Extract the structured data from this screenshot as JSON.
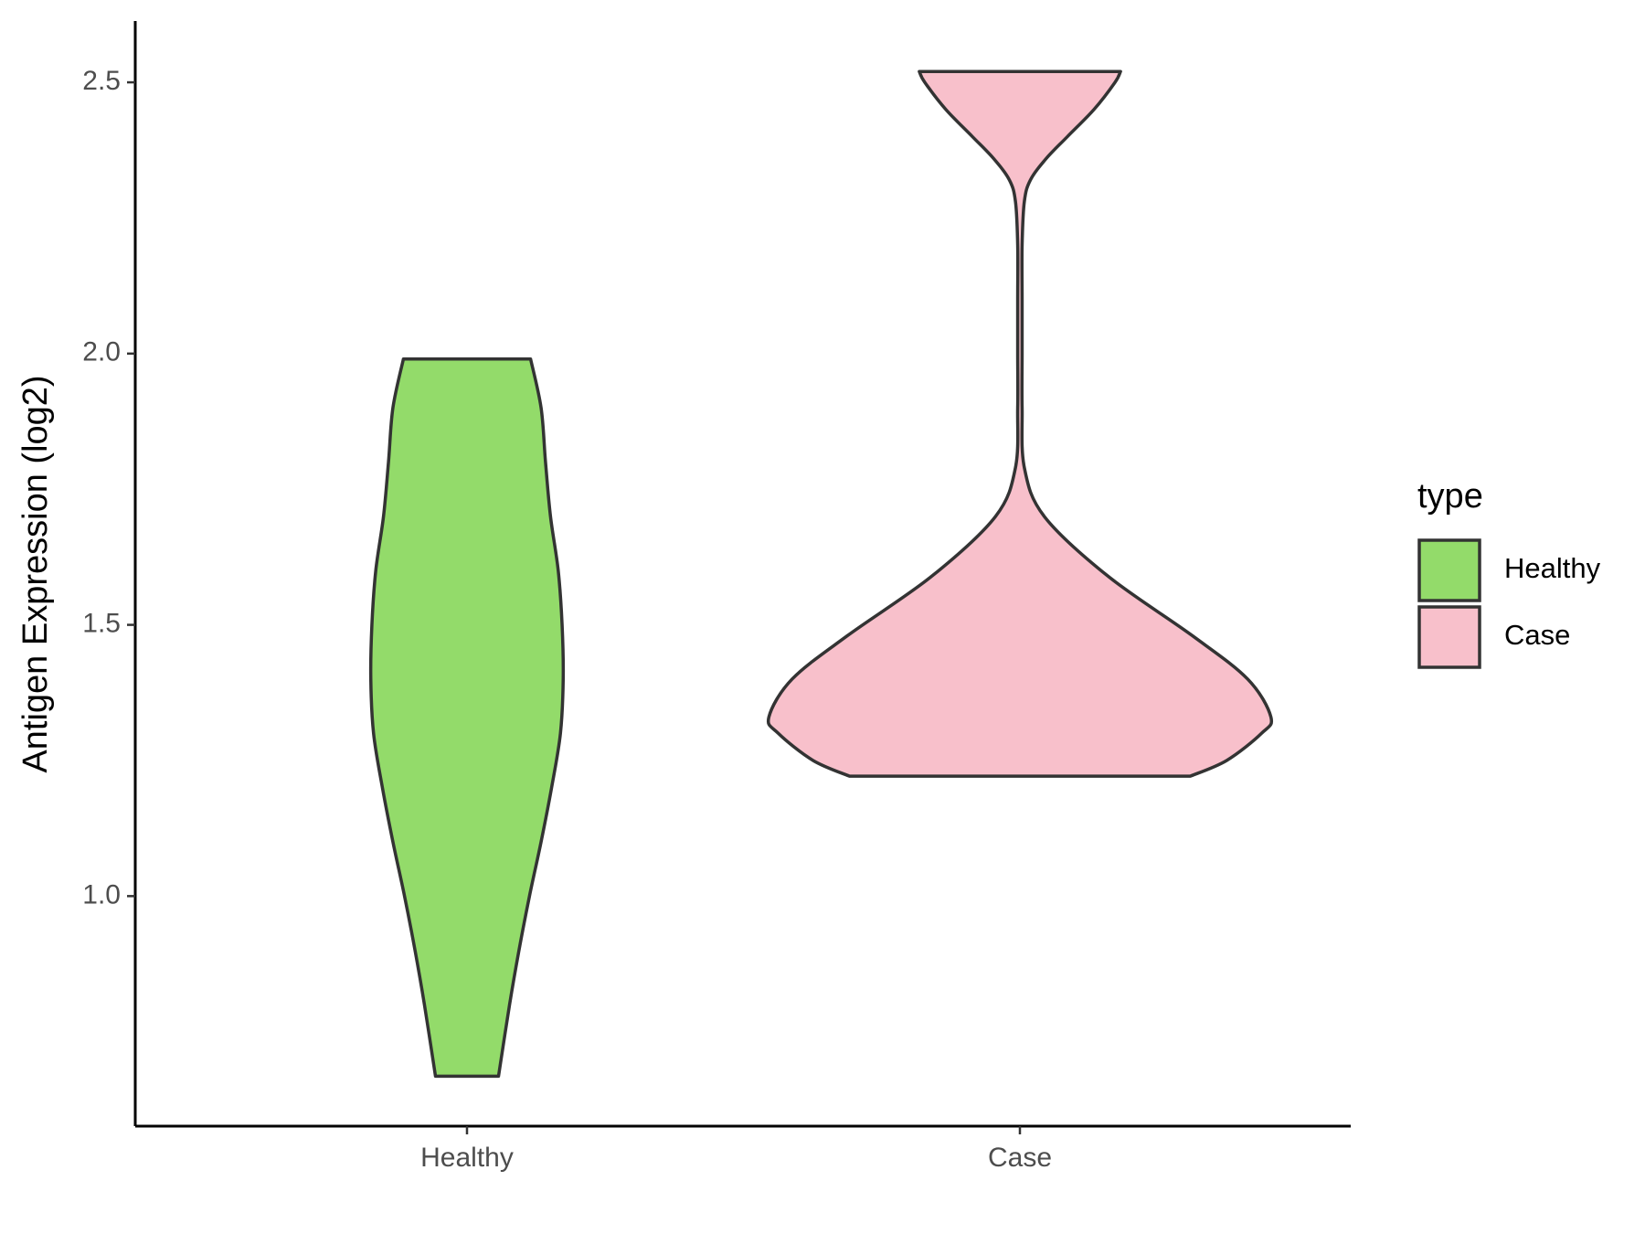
{
  "chart_data": {
    "type": "violin",
    "y_label": "Antigen Expression (log2)",
    "categories": [
      "Healthy",
      "Case"
    ],
    "legend_title": "type",
    "legend_position": "right",
    "ylim": [
      0.576,
      2.613
    ],
    "yticks": [
      {
        "value": 1,
        "label": "1.0"
      },
      {
        "value": 1.5,
        "label": "1.5"
      },
      {
        "value": 2,
        "label": "2.0"
      },
      {
        "value": 2.5,
        "label": "2.5"
      }
    ],
    "grid": false,
    "series": [
      {
        "name": "Healthy",
        "color": "#93DB6A",
        "y": [
          0.668,
          0.8,
          0.9,
          1.0,
          1.1,
          1.2,
          1.3,
          1.4,
          1.5,
          1.6,
          1.7,
          1.8,
          1.9,
          1.99
        ],
        "widths": [
          0.057,
          0.077,
          0.094,
          0.113,
          0.134,
          0.153,
          0.169,
          0.174,
          0.172,
          0.165,
          0.151,
          0.142,
          0.134,
          0.115
        ]
      },
      {
        "name": "Case",
        "color": "#F8C0CB",
        "y": [
          1.221,
          1.25,
          1.3,
          1.33,
          1.4,
          1.48,
          1.59,
          1.7,
          1.79,
          1.9,
          2.0,
          2.1,
          2.2,
          2.28,
          2.32,
          2.36,
          2.4,
          2.45,
          2.5,
          2.52
        ],
        "widths": [
          0.308,
          0.374,
          0.437,
          0.454,
          0.412,
          0.312,
          0.159,
          0.044,
          0.008,
          0.004,
          0.004,
          0.004,
          0.004,
          0.008,
          0.019,
          0.048,
          0.086,
          0.134,
          0.172,
          0.182
        ]
      }
    ]
  }
}
